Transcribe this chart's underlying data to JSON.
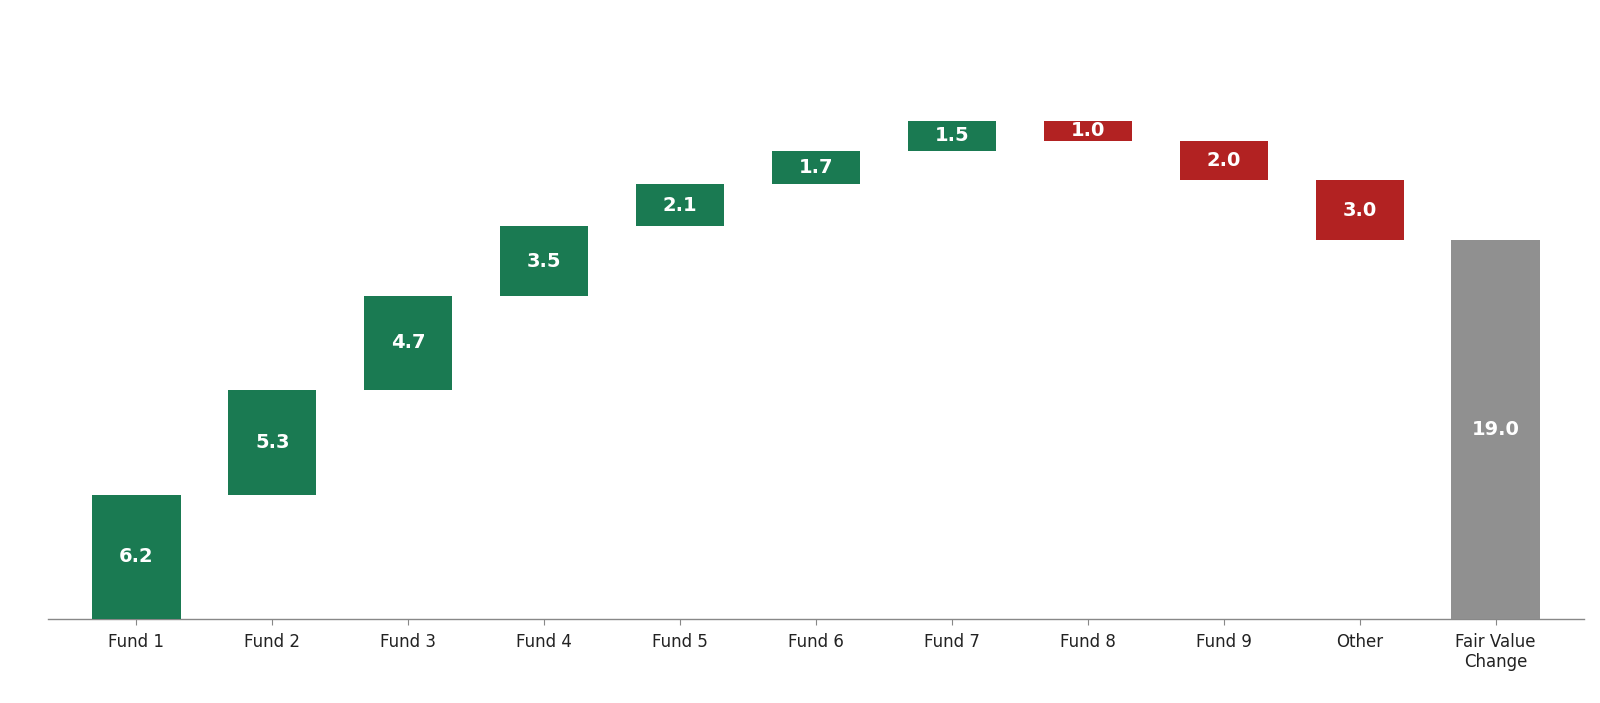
{
  "categories": [
    "Fund 1",
    "Fund 2",
    "Fund 3",
    "Fund 4",
    "Fund 5",
    "Fund 6",
    "Fund 7",
    "Fund 8",
    "Fund 9",
    "Other",
    "Fair Value\nChange"
  ],
  "values": [
    6.2,
    5.3,
    4.7,
    3.5,
    2.1,
    1.7,
    1.5,
    -1.0,
    -2.0,
    -3.0,
    19.0
  ],
  "labels": [
    "6.2",
    "5.3",
    "4.7",
    "3.5",
    "2.1",
    "1.7",
    "1.5",
    "1.0",
    "2.0",
    "3.0",
    "19.0"
  ],
  "colors": [
    "#1a7a52",
    "#1a7a52",
    "#1a7a52",
    "#1a7a52",
    "#1a7a52",
    "#1a7a52",
    "#1a7a52",
    "#b22222",
    "#b22222",
    "#b22222",
    "#909090"
  ],
  "bar_width": 0.65,
  "figsize": [
    16.0,
    7.03
  ],
  "dpi": 100,
  "background_color": "#ffffff",
  "text_color": "#ffffff",
  "label_fontsize": 14,
  "tick_fontsize": 12,
  "ylim": [
    0,
    30
  ],
  "green_color": "#1a7a52",
  "red_color": "#b22222",
  "gray_color": "#909090"
}
